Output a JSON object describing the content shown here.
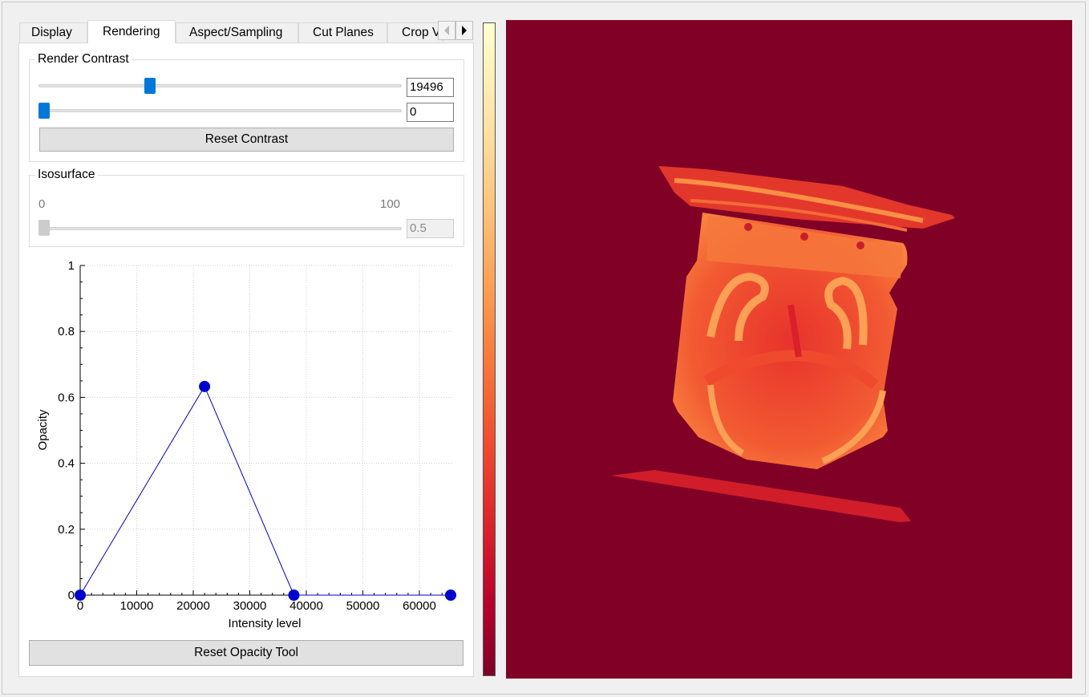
{
  "tabs": [
    {
      "label": "Display"
    },
    {
      "label": "Rendering"
    },
    {
      "label": "Aspect/Sampling"
    },
    {
      "label": "Cut Planes"
    },
    {
      "label": "Crop Vo"
    }
  ],
  "active_tab": "Rendering",
  "render_contrast": {
    "title": "Render Contrast",
    "max_value": "19496",
    "min_value": "0",
    "max_slider_fraction": 0.3,
    "min_slider_fraction": 0.0,
    "reset_label": "Reset Contrast"
  },
  "isosurface": {
    "title": "Isosurface",
    "range_min_label": "0",
    "range_max_label": "100",
    "value": "0.5",
    "slider_fraction": 0.0
  },
  "chart_data": {
    "type": "line",
    "xlabel": "Intensity level",
    "ylabel": "Opacity",
    "xlim": [
      0,
      65535
    ],
    "ylim": [
      0,
      1
    ],
    "x_ticks": [
      "0",
      "10000",
      "20000",
      "30000",
      "40000",
      "50000",
      "60000"
    ],
    "y_ticks": [
      "0",
      "0.2",
      "0.4",
      "0.6",
      "0.8",
      "1"
    ],
    "grid": true,
    "series": [
      {
        "x": [
          0,
          22000,
          37800,
          65535
        ],
        "y": [
          0,
          0.633,
          0,
          0
        ]
      }
    ]
  },
  "reset_opacity_label": "Reset Opacity Tool",
  "colors": {
    "accent": "#0078d7",
    "curve": "#0000cc",
    "viewport_bg": "#800026"
  },
  "colormap": "YlOrRd"
}
